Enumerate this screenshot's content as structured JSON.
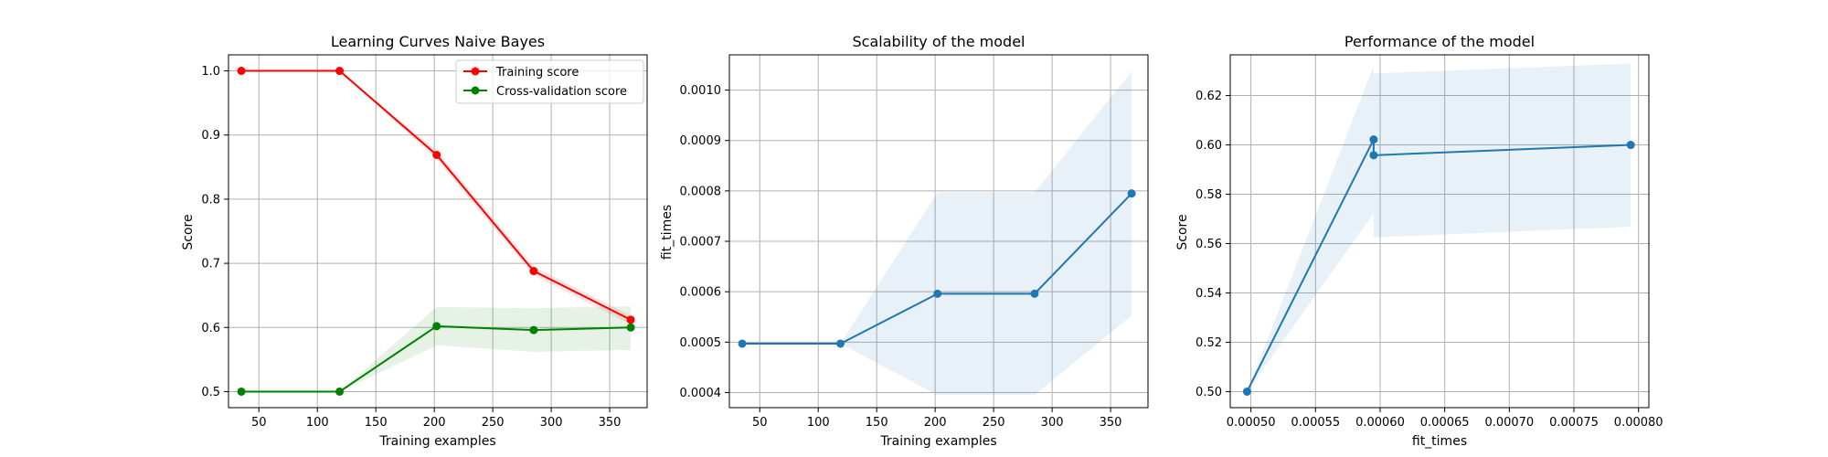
{
  "chart_data": [
    {
      "type": "line",
      "title": "Learning Curves Naive Bayes",
      "xlabel": "Training examples",
      "ylabel": "Score",
      "xlim": [
        24,
        382
      ],
      "ylim": [
        0.475,
        1.025
      ],
      "xticks": [
        50,
        100,
        150,
        200,
        250,
        300,
        350
      ],
      "yticks": [
        0.5,
        0.6,
        0.7,
        0.8,
        0.9,
        1.0
      ],
      "xtick_labels": [
        "50",
        "100",
        "150",
        "200",
        "250",
        "300",
        "350"
      ],
      "ytick_labels": [
        "0.5",
        "0.6",
        "0.7",
        "0.8",
        "0.9",
        "1.0"
      ],
      "grid": true,
      "legend": "top-right",
      "series": [
        {
          "name": "Training score",
          "color": "#ff0000",
          "x": [
            35,
            119,
            202,
            285,
            368
          ],
          "y": [
            1.0,
            1.0,
            0.869,
            0.688,
            0.612
          ],
          "band_lower": [
            1.0,
            1.0,
            0.862,
            0.681,
            0.605
          ],
          "band_upper": [
            1.0,
            1.0,
            0.876,
            0.695,
            0.619
          ]
        },
        {
          "name": "Cross-validation score",
          "color": "#008000",
          "x": [
            35,
            119,
            202,
            285,
            368
          ],
          "y": [
            0.5,
            0.5,
            0.602,
            0.596,
            0.6
          ],
          "band_lower": [
            0.5,
            0.5,
            0.572,
            0.562,
            0.565
          ],
          "band_upper": [
            0.5,
            0.5,
            0.632,
            0.63,
            0.633
          ]
        }
      ]
    },
    {
      "type": "line",
      "title": "Scalability of the model",
      "xlabel": "Training examples",
      "ylabel": "fit_times",
      "xlim": [
        24,
        382
      ],
      "ylim": [
        0.00037,
        0.00107
      ],
      "xticks": [
        50,
        100,
        150,
        200,
        250,
        300,
        350
      ],
      "yticks": [
        0.0004,
        0.0005,
        0.0006,
        0.0007,
        0.0008,
        0.0009,
        0.001
      ],
      "xtick_labels": [
        "50",
        "100",
        "150",
        "200",
        "250",
        "300",
        "350"
      ],
      "ytick_labels": [
        "0.0004",
        "0.0005",
        "0.0006",
        "0.0007",
        "0.0008",
        "0.0009",
        "0.0010"
      ],
      "grid": true,
      "series": [
        {
          "color": "#1f77b4",
          "x": [
            35,
            119,
            202,
            285,
            368
          ],
          "y": [
            0.000497,
            0.000497,
            0.000596,
            0.000596,
            0.000795
          ],
          "band_lower": [
            0.000497,
            0.000497,
            0.000395,
            0.000395,
            0.000553
          ],
          "band_upper": [
            0.000497,
            0.000497,
            0.000797,
            0.000797,
            0.001037
          ]
        }
      ]
    },
    {
      "type": "line",
      "title": "Performance of the model",
      "xlabel": "fit_times",
      "ylabel": "Score",
      "xlim": [
        0.000484,
        0.000808
      ],
      "ylim": [
        0.4935,
        0.6365
      ],
      "xticks": [
        0.0005,
        0.00055,
        0.0006,
        0.00065,
        0.0007,
        0.00075,
        0.0008
      ],
      "yticks": [
        0.5,
        0.52,
        0.54,
        0.56,
        0.58,
        0.6,
        0.62
      ],
      "xtick_labels": [
        "0.00050",
        "0.00055",
        "0.00060",
        "0.00065",
        "0.00070",
        "0.00075",
        "0.00080"
      ],
      "ytick_labels": [
        "0.50",
        "0.52",
        "0.54",
        "0.56",
        "0.58",
        "0.60",
        "0.62"
      ],
      "grid": true,
      "series": [
        {
          "color": "#1f77b4",
          "x": [
            0.000497,
            0.000595,
            0.000595,
            0.000794
          ],
          "y": [
            0.5,
            0.6022,
            0.5958,
            0.6
          ],
          "band_lower": [
            0.5,
            0.5723,
            0.5625,
            0.5668
          ],
          "band_upper": [
            0.5,
            0.632,
            0.6289,
            0.633
          ]
        }
      ]
    }
  ]
}
